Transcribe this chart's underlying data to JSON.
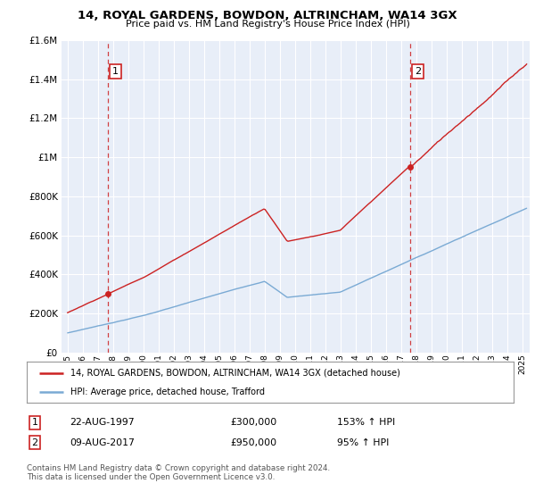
{
  "title": "14, ROYAL GARDENS, BOWDON, ALTRINCHAM, WA14 3GX",
  "subtitle": "Price paid vs. HM Land Registry's House Price Index (HPI)",
  "hpi_color": "#7aaad4",
  "price_color": "#cc2222",
  "annotation1_date": 1997.65,
  "annotation2_date": 2017.62,
  "sale1_price": 300000,
  "sale2_price": 950000,
  "legend_line1": "14, ROYAL GARDENS, BOWDON, ALTRINCHAM, WA14 3GX (detached house)",
  "legend_line2": "HPI: Average price, detached house, Trafford",
  "footer": "Contains HM Land Registry data © Crown copyright and database right 2024.\nThis data is licensed under the Open Government Licence v3.0.",
  "ylim": [
    0,
    1600000
  ],
  "xlim_start": 1994.6,
  "xlim_end": 2025.5,
  "background_color": "#e8eef8",
  "grid_color": "#ffffff",
  "fig_bg": "#ffffff"
}
